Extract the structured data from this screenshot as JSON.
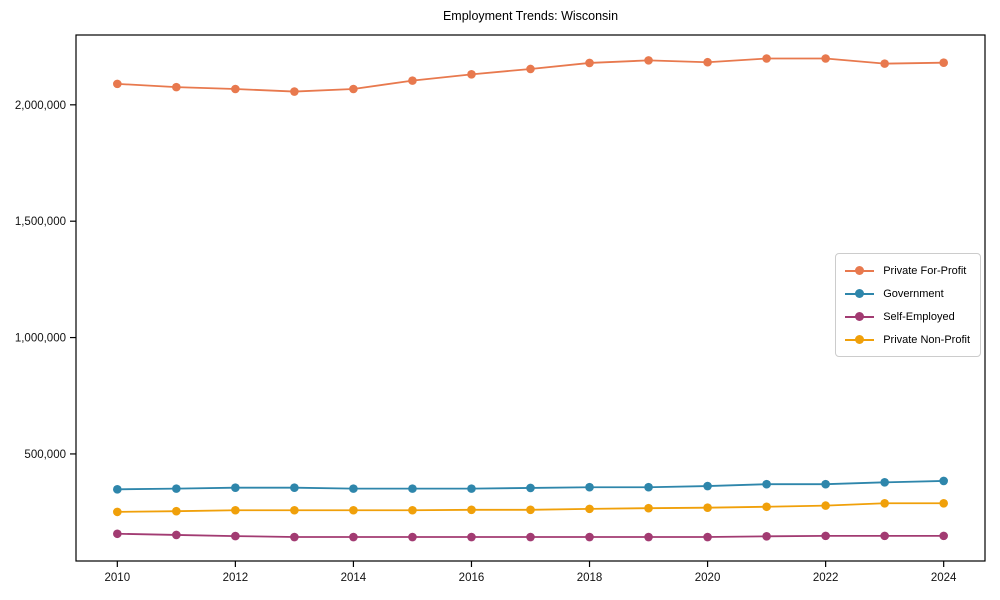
{
  "figure": {
    "background": "#ffffff",
    "axis_color": "#000000",
    "tick_label_color": "#111111",
    "legend_border_color": "#cccccc"
  },
  "chart_data": {
    "type": "line",
    "title": "Employment Trends: Wisconsin",
    "xlabel": "",
    "ylabel": "",
    "grid": false,
    "marker": "circle",
    "legend_position": "inside center-right",
    "x": [
      2010,
      2011,
      2012,
      2013,
      2014,
      2015,
      2016,
      2017,
      2018,
      2019,
      2020,
      2021,
      2022,
      2023,
      2024
    ],
    "series": [
      {
        "name": "Private For-Profit",
        "color": "#e8794e",
        "values": [
          2090000,
          2076000,
          2068000,
          2057000,
          2068000,
          2104000,
          2131000,
          2154000,
          2180000,
          2191000,
          2183000,
          2199000,
          2199000,
          2177000,
          2181000
        ]
      },
      {
        "name": "Government",
        "color": "#2e86ab",
        "values": [
          348000,
          351000,
          355000,
          355000,
          351000,
          351000,
          351000,
          354000,
          357000,
          357000,
          362000,
          370000,
          370000,
          378000,
          384000
        ]
      },
      {
        "name": "Self-Employed",
        "color": "#a23b72",
        "values": [
          157000,
          152000,
          147000,
          143000,
          143000,
          143000,
          143000,
          143000,
          143000,
          143000,
          143000,
          146000,
          148000,
          148000,
          148000
        ]
      },
      {
        "name": "Private Non-Profit",
        "color": "#f0a00a",
        "values": [
          251000,
          254000,
          258000,
          258000,
          258000,
          258000,
          260000,
          260000,
          264000,
          267000,
          269000,
          273000,
          278000,
          288000,
          288000
        ]
      }
    ],
    "xlim": [
      2009.3,
      2024.7
    ],
    "ylim": [
      40000,
      2300000
    ],
    "xticks": {
      "values": [
        2010,
        2012,
        2014,
        2016,
        2018,
        2020,
        2022,
        2024
      ],
      "labels": [
        "2010",
        "2012",
        "2014",
        "2016",
        "2018",
        "2020",
        "2022",
        "2024"
      ]
    },
    "yticks": {
      "values": [
        500000,
        1000000,
        1500000,
        2000000
      ],
      "labels": [
        "500,000",
        "1,000,000",
        "1,500,000",
        "2,000,000"
      ]
    }
  }
}
